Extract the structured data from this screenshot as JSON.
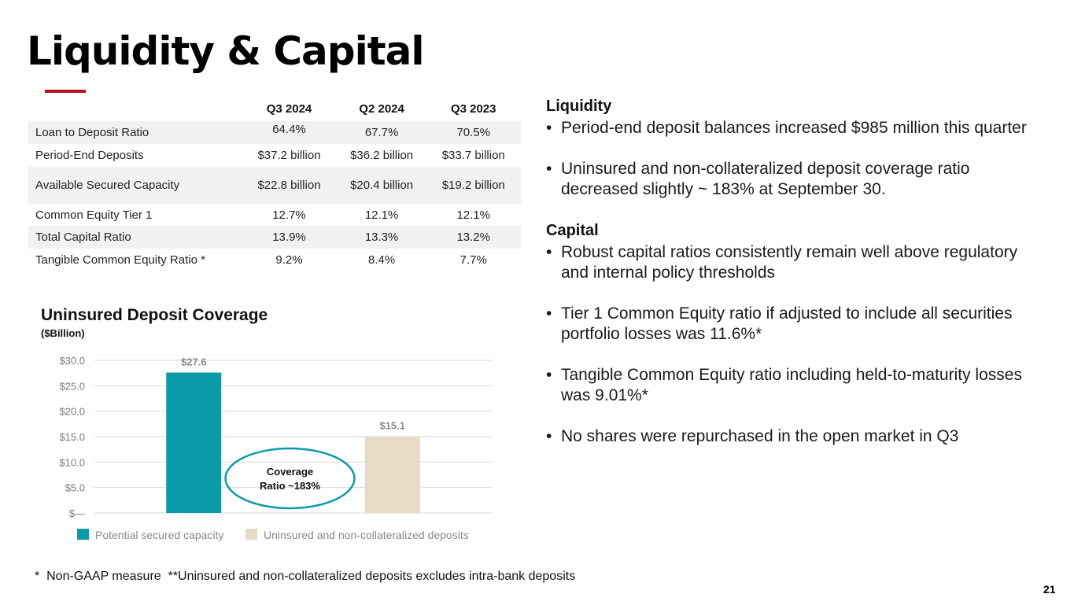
{
  "page": {
    "title": "Liquidity & Capital",
    "page_number": "21",
    "footnote": "*  Non-GAAP measure  **Uninsured and non-collateralized deposits excludes intra-bank deposits"
  },
  "table": {
    "headers": [
      "",
      "Q3 2024",
      "Q2 2024",
      "Q3 2023"
    ],
    "rows": [
      {
        "label": "Loan to Deposit Ratio",
        "values": [
          "64.4%",
          "67.7%",
          "70.5%"
        ]
      },
      {
        "label": "Period-End Deposits",
        "values": [
          "$37.2 billion",
          "$36.2 billion",
          "$33.7 billion"
        ]
      },
      {
        "label": "Available Secured Capacity",
        "values": [
          "$22.8 billion",
          "$20.4 billion",
          "$19.2 billion"
        ]
      },
      {
        "label": "Common Equity Tier 1",
        "values": [
          "12.7%",
          "12.1%",
          "12.1%"
        ]
      },
      {
        "label": "Total Capital Ratio",
        "values": [
          "13.9%",
          "13.3%",
          "13.2%"
        ]
      },
      {
        "label": "Tangible Common Equity Ratio *",
        "values": [
          "9.2%",
          "8.4%",
          "7.7%"
        ]
      }
    ]
  },
  "chart_data": {
    "type": "bar",
    "title": "Uninsured Deposit Coverage",
    "subtitle": "($Billion)",
    "categories": [
      "Potential secured capacity",
      "Uninsured and non-collateralized deposits"
    ],
    "values": [
      27.6,
      15.1
    ],
    "data_labels": [
      "$27.6",
      "$15.1"
    ],
    "colors": [
      "#0b9aa8",
      "#e6dbc6"
    ],
    "ylim": [
      0,
      30
    ],
    "yticks": [
      0,
      5,
      10,
      15,
      20,
      25,
      30
    ],
    "ytick_labels": [
      "$—",
      "$5.0",
      "$10.0",
      "$15.0",
      "$20.0",
      "$25.0",
      "$30.0"
    ],
    "grid": true,
    "legend": "bottom",
    "annotation": {
      "lines": [
        "Coverage",
        "Ratio ~183%"
      ],
      "outline_color": "#0b9aa8"
    }
  },
  "right": {
    "liquidity_heading": "Liquidity",
    "liquidity_bullets": [
      "Period-end deposit balances increased $985 million this quarter",
      "Uninsured and non-collateralized deposit coverage ratio decreased slightly ~ 183% at September 30."
    ],
    "capital_heading": "Capital",
    "capital_bullets": [
      "Robust capital ratios consistently remain well above regulatory and internal policy thresholds",
      "Tier 1 Common Equity ratio if adjusted to include all securities portfolio losses was 11.6%*",
      "Tangible Common Equity ratio including held-to-maturity losses was 9.01%*",
      "No shares were repurchased in the open market in Q3"
    ],
    "bullet_glyph": "•"
  },
  "colors": {
    "accent_red": "#b5121b",
    "row_shade": "#f1f1f1"
  }
}
